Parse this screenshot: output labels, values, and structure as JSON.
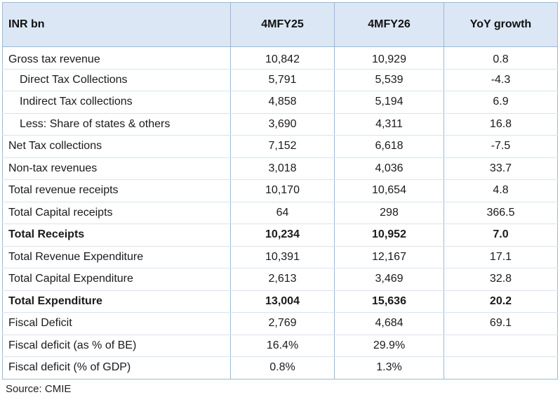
{
  "table": {
    "headers": [
      "INR bn",
      "4MFY25",
      "4MFY26",
      "YoY growth"
    ],
    "rows": [
      {
        "label": "Gross tax revenue",
        "v1": "10,842",
        "v2": "10,929",
        "yoy": "0.8",
        "indent": false,
        "bold": false
      },
      {
        "label": "Direct Tax Collections",
        "v1": "5,791",
        "v2": "5,539",
        "yoy": "-4.3",
        "indent": true,
        "bold": false
      },
      {
        "label": "Indirect Tax collections",
        "v1": "4,858",
        "v2": "5,194",
        "yoy": "6.9",
        "indent": true,
        "bold": false
      },
      {
        "label": "Less: Share of states & others",
        "v1": "3,690",
        "v2": "4,311",
        "yoy": "16.8",
        "indent": true,
        "bold": false
      },
      {
        "label": "Net Tax collections",
        "v1": "7,152",
        "v2": "6,618",
        "yoy": "-7.5",
        "indent": false,
        "bold": false
      },
      {
        "label": "Non-tax revenues",
        "v1": "3,018",
        "v2": "4,036",
        "yoy": "33.7",
        "indent": false,
        "bold": false
      },
      {
        "label": "Total revenue receipts",
        "v1": "10,170",
        "v2": "10,654",
        "yoy": "4.8",
        "indent": false,
        "bold": false
      },
      {
        "label": "Total Capital receipts",
        "v1": "64",
        "v2": "298",
        "yoy": "366.5",
        "indent": false,
        "bold": false
      },
      {
        "label": "Total Receipts",
        "v1": "10,234",
        "v2": "10,952",
        "yoy": "7.0",
        "indent": false,
        "bold": true
      },
      {
        "label": "Total Revenue Expenditure",
        "v1": "10,391",
        "v2": "12,167",
        "yoy": "17.1",
        "indent": false,
        "bold": false
      },
      {
        "label": "Total Capital Expenditure",
        "v1": "2,613",
        "v2": "3,469",
        "yoy": "32.8",
        "indent": false,
        "bold": false
      },
      {
        "label": "Total Expenditure",
        "v1": "13,004",
        "v2": "15,636",
        "yoy": "20.2",
        "indent": false,
        "bold": true
      },
      {
        "label": "Fiscal Deficit",
        "v1": "2,769",
        "v2": "4,684",
        "yoy": "69.1",
        "indent": false,
        "bold": false
      },
      {
        "label": "Fiscal deficit (as % of BE)",
        "v1": "16.4%",
        "v2": "29.9%",
        "yoy": "",
        "indent": false,
        "bold": false
      },
      {
        "label": "Fiscal deficit (% of GDP)",
        "v1": "0.8%",
        "v2": "1.3%",
        "yoy": "",
        "indent": false,
        "bold": false
      }
    ]
  },
  "source": "Source: CMIE"
}
